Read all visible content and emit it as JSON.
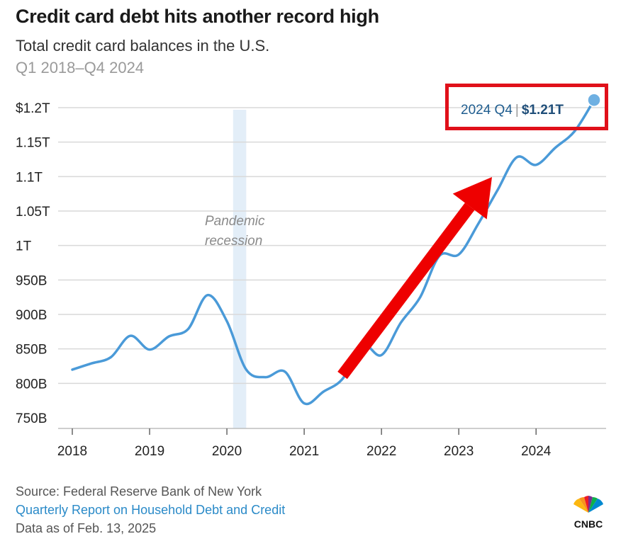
{
  "header": {
    "title": "Credit card debt hits another record high",
    "subtitle": "Total credit card balances in the U.S.",
    "range": "Q1 2018–Q4 2024"
  },
  "callout": {
    "period": "2024 Q4",
    "separator": "|",
    "value": "$1.21T",
    "highlight_color": "#e0101a"
  },
  "shaded_region": {
    "label_line1": "Pandemic",
    "label_line2": "recession",
    "color": "#e3eef8"
  },
  "footer": {
    "source": "Source: Federal Reserve Bank of New York",
    "report": "Quarterly Report on Household Debt and Credit",
    "as_of": "Data as of Feb. 13, 2025",
    "logo_text": "CNBC"
  },
  "colors": {
    "line": "#4a9ad8",
    "arrow": "#ee0000",
    "grid": "#d9d9d9"
  },
  "chart_data": {
    "type": "line",
    "title": "Credit card debt hits another record high",
    "subtitle": "Total credit card balances in the U.S.",
    "xlabel": "",
    "ylabel": "",
    "y_unit": "billions of dollars",
    "ylim": [
      750,
      1200
    ],
    "xlim": [
      2018.0,
      2024.75
    ],
    "yticks": [
      {
        "value": 1200,
        "label": "$1.2T"
      },
      {
        "value": 1150,
        "label": "1.15T"
      },
      {
        "value": 1100,
        "label": "1.1T"
      },
      {
        "value": 1050,
        "label": "1.05T"
      },
      {
        "value": 1000,
        "label": "1T"
      },
      {
        "value": 950,
        "label": "950B"
      },
      {
        "value": 900,
        "label": "900B"
      },
      {
        "value": 850,
        "label": "850B"
      },
      {
        "value": 800,
        "label": "800B"
      },
      {
        "value": 750,
        "label": "750B"
      }
    ],
    "xticks": [
      {
        "value": 2018,
        "label": "2018"
      },
      {
        "value": 2019,
        "label": "2019"
      },
      {
        "value": 2020,
        "label": "2020"
      },
      {
        "value": 2021,
        "label": "2021"
      },
      {
        "value": 2022,
        "label": "2022"
      },
      {
        "value": 2023,
        "label": "2023"
      },
      {
        "value": 2024,
        "label": "2024"
      }
    ],
    "shaded_x": [
      2020.08,
      2020.25
    ],
    "grid": true,
    "series": [
      {
        "quarters": [
          "2018 Q1",
          "2018 Q2",
          "2018 Q3",
          "2018 Q4",
          "2019 Q1",
          "2019 Q2",
          "2019 Q3",
          "2019 Q4",
          "2020 Q1",
          "2020 Q2",
          "2020 Q3",
          "2020 Q4",
          "2021 Q1",
          "2021 Q2",
          "2021 Q3",
          "2021 Q4",
          "2022 Q1",
          "2022 Q2",
          "2022 Q3",
          "2022 Q4",
          "2023 Q1",
          "2023 Q2",
          "2023 Q3",
          "2023 Q4",
          "2024 Q1",
          "2024 Q2",
          "2024 Q3",
          "2024 Q4"
        ],
        "x": [
          2018.0,
          2018.25,
          2018.5,
          2018.75,
          2019.0,
          2019.25,
          2019.5,
          2019.75,
          2020.0,
          2020.25,
          2020.5,
          2020.75,
          2021.0,
          2021.25,
          2021.5,
          2021.75,
          2022.0,
          2022.25,
          2022.5,
          2022.75,
          2023.0,
          2023.25,
          2023.5,
          2023.75,
          2024.0,
          2024.25,
          2024.5,
          2024.75
        ],
        "values": [
          820,
          829,
          838,
          869,
          849,
          868,
          879,
          928,
          890,
          820,
          809,
          817,
          771,
          788,
          807,
          856,
          841,
          888,
          925,
          985,
          987,
          1031,
          1080,
          1128,
          1117,
          1142,
          1166,
          1211
        ]
      }
    ]
  }
}
